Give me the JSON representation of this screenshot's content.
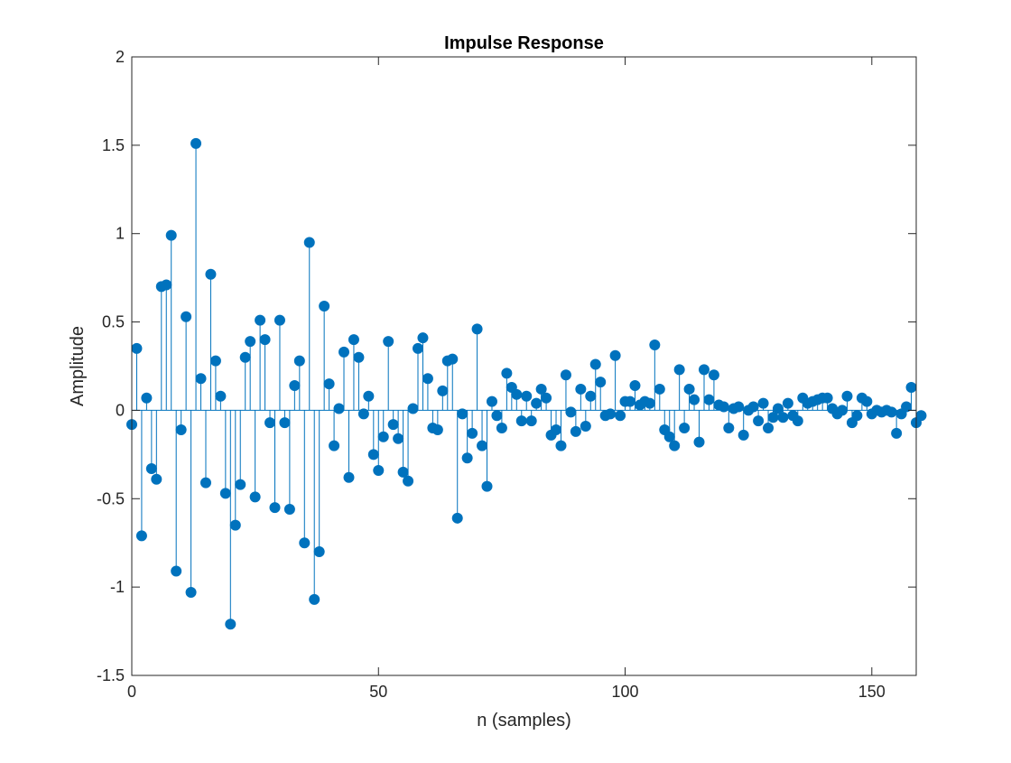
{
  "chart_data": {
    "type": "stem",
    "title": "Impulse Response",
    "xlabel": "n (samples)",
    "ylabel": "Amplitude",
    "xlim": [
      0,
      159
    ],
    "ylim": [
      -1.5,
      2
    ],
    "xticks": [
      0,
      50,
      100,
      150
    ],
    "xtick_labels": [
      "0",
      "50",
      "100",
      "150"
    ],
    "yticks": [
      -1.5,
      -1,
      -0.5,
      0,
      0.5,
      1,
      1.5,
      2
    ],
    "ytick_labels": [
      "-1.5",
      "-1",
      "-0.5",
      "0",
      "0.5",
      "1",
      "1.5",
      "2"
    ],
    "grid": false,
    "box": true,
    "series": [
      {
        "color": "#0072BD",
        "x_start": 0,
        "x_step": 1,
        "values": [
          -0.08,
          0.35,
          -0.71,
          0.07,
          -0.33,
          -0.39,
          0.7,
          0.71,
          0.99,
          -0.91,
          -0.11,
          0.53,
          -1.03,
          1.51,
          0.18,
          -0.41,
          0.77,
          0.28,
          0.08,
          -0.47,
          -1.21,
          -0.65,
          -0.42,
          0.3,
          0.39,
          -0.49,
          0.51,
          0.4,
          -0.07,
          -0.55,
          0.51,
          -0.07,
          -0.56,
          0.14,
          0.28,
          -0.75,
          0.95,
          -1.07,
          -0.8,
          0.59,
          0.15,
          -0.2,
          0.01,
          0.33,
          -0.38,
          0.4,
          0.3,
          -0.02,
          0.08,
          -0.25,
          -0.34,
          -0.15,
          0.39,
          -0.08,
          -0.16,
          -0.35,
          -0.4,
          0.01,
          0.35,
          0.41,
          0.18,
          -0.1,
          -0.11,
          0.11,
          0.28,
          0.29,
          -0.61,
          -0.02,
          -0.27,
          -0.13,
          0.46,
          -0.2,
          -0.43,
          0.05,
          -0.03,
          -0.1,
          0.21,
          0.13,
          0.09,
          -0.06,
          0.08,
          -0.06,
          0.04,
          0.12,
          0.07,
          -0.14,
          -0.11,
          -0.2,
          0.2,
          -0.01,
          -0.12,
          0.12,
          -0.09,
          0.08,
          0.26,
          0.16,
          -0.03,
          -0.02,
          0.31,
          -0.03,
          0.05,
          0.05,
          0.14,
          0.03,
          0.05,
          0.04,
          0.37,
          0.12,
          -0.11,
          -0.15,
          -0.2,
          0.23,
          -0.1,
          0.12,
          0.06,
          -0.18,
          0.23,
          0.06,
          0.2,
          0.03,
          0.02,
          -0.1,
          0.01,
          0.02,
          -0.14,
          0.0,
          0.02,
          -0.06,
          0.04,
          -0.1,
          -0.04,
          0.01,
          -0.04,
          0.04,
          -0.03,
          -0.06,
          0.07,
          0.04,
          0.05,
          0.06,
          0.07,
          0.07,
          0.01,
          -0.02,
          0.0,
          0.08,
          -0.07,
          -0.03,
          0.07,
          0.05,
          -0.02,
          0.0,
          -0.01,
          0.0,
          -0.01,
          -0.13,
          -0.02,
          0.02,
          0.13,
          -0.07,
          -0.03
        ]
      }
    ]
  }
}
